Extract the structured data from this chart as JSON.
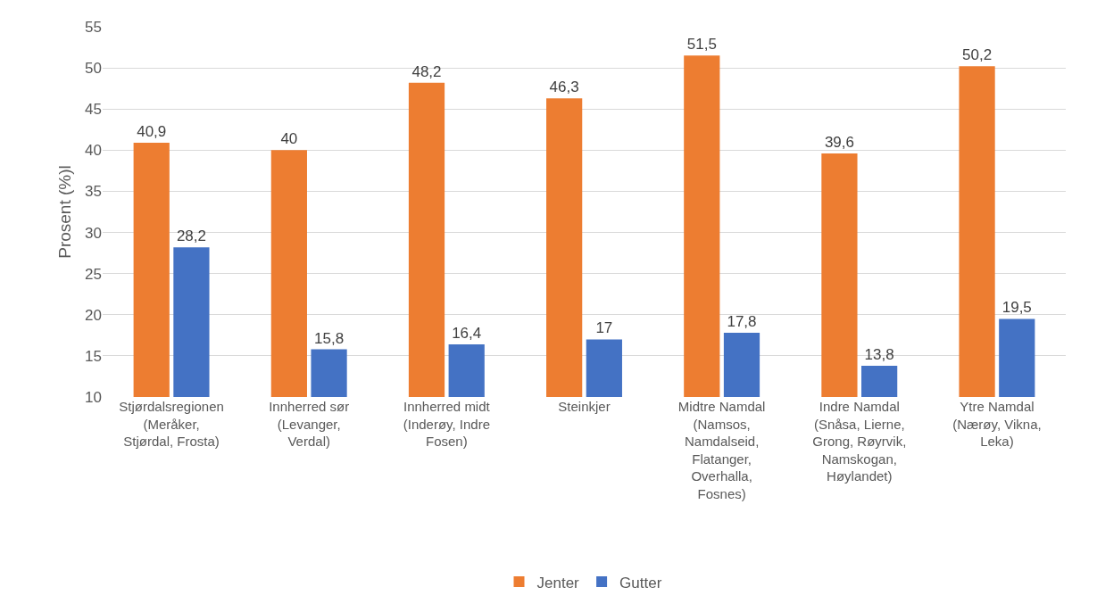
{
  "chart_data": {
    "type": "bar",
    "ylabel": "Prosent (%)l",
    "categories": [
      "Stjørdalsregionen (Meråker, Stjørdal, Frosta)",
      "Innherred sør (Levanger, Verdal)",
      "Innherred midt (Inderøy, Indre Fosen)",
      "Steinkjer",
      "Midtre Namdal (Namsos, Namdalseid, Flatanger, Overhalla, Fosnes)",
      "Indre Namdal (Snåsa, Lierne, Grong, Røyrvik, Namskogan, Høylandet)",
      "Ytre Namdal (Nærøy, Vikna, Leka)"
    ],
    "series": [
      {
        "name": "Jenter",
        "color": "#ed7d31",
        "values": [
          40.9,
          40,
          48.2,
          46.3,
          51.5,
          39.6,
          50.2
        ],
        "value_labels": [
          "40,9",
          "40",
          "48,2",
          "46,3",
          "51,5",
          "39,6",
          "50,2"
        ]
      },
      {
        "name": "Gutter",
        "color": "#4472c4",
        "values": [
          28.2,
          15.8,
          16.4,
          17,
          17.8,
          13.8,
          19.5
        ],
        "value_labels": [
          "28,2",
          "15,8",
          "16,4",
          "17",
          "17,8",
          "13,8",
          "19,5"
        ]
      }
    ],
    "ylim": [
      10,
      55
    ],
    "yticks": [
      10,
      15,
      20,
      25,
      30,
      35,
      40,
      45,
      50,
      55
    ],
    "grid": "y",
    "legend": "bottom"
  }
}
